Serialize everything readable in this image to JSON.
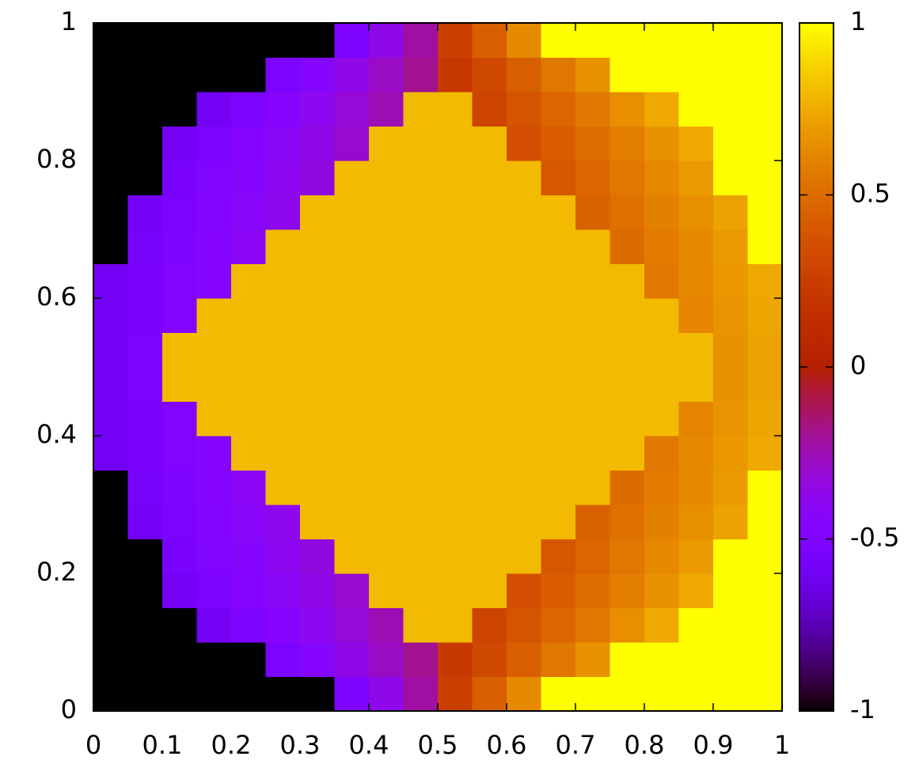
{
  "chart_data": {
    "type": "heatmap",
    "colormap": "gnuplot",
    "x": [
      0.025,
      0.075,
      0.125,
      0.175,
      0.225,
      0.275,
      0.325,
      0.375,
      0.425,
      0.475,
      0.525,
      0.575,
      0.625,
      0.675,
      0.725,
      0.775,
      0.825,
      0.875,
      0.925,
      0.975
    ],
    "y": [
      0.025,
      0.075,
      0.125,
      0.175,
      0.225,
      0.275,
      0.325,
      0.375,
      0.425,
      0.475,
      0.525,
      0.575,
      0.625,
      0.675,
      0.725,
      0.775,
      0.825,
      0.875,
      0.925,
      0.975
    ],
    "z": [
      [
        -1,
        -1,
        -1,
        -1,
        -1,
        -1,
        -1,
        -0.51,
        -0.37,
        -0.22,
        0.25,
        0.44,
        0.63,
        1,
        1,
        1,
        1,
        1,
        1,
        1
      ],
      [
        -1,
        -1,
        -1,
        -1,
        -1,
        -0.53,
        -0.45,
        -0.36,
        -0.28,
        -0.19,
        0.21,
        0.32,
        0.44,
        0.55,
        0.66,
        1,
        1,
        1,
        1,
        1
      ],
      [
        -1,
        -1,
        -1,
        -0.59,
        -0.52,
        -0.46,
        -0.39,
        -0.32,
        -0.25,
        0.8,
        0.8,
        0.29,
        0.38,
        0.47,
        0.56,
        0.65,
        0.74,
        1,
        1,
        1
      ],
      [
        -1,
        -1,
        -0.59,
        -0.53,
        -0.48,
        -0.42,
        -0.36,
        -0.3,
        0.8,
        0.8,
        0.8,
        0.8,
        0.35,
        0.43,
        0.51,
        0.58,
        0.66,
        0.74,
        1,
        1
      ],
      [
        -1,
        -1,
        -0.55,
        -0.5,
        -0.45,
        -0.39,
        -0.34,
        0.8,
        0.8,
        0.8,
        0.8,
        0.8,
        0.8,
        0.4,
        0.47,
        0.55,
        0.62,
        0.69,
        1,
        1
      ],
      [
        -1,
        -0.58,
        -0.53,
        -0.48,
        -0.43,
        -0.38,
        0.8,
        0.8,
        0.8,
        0.8,
        0.8,
        0.8,
        0.8,
        0.8,
        0.45,
        0.52,
        0.59,
        0.65,
        0.72,
        1
      ],
      [
        -1,
        -0.56,
        -0.51,
        -0.46,
        -0.41,
        0.8,
        0.8,
        0.8,
        0.8,
        0.8,
        0.8,
        0.8,
        0.8,
        0.8,
        0.8,
        0.5,
        0.57,
        0.63,
        0.69,
        1
      ],
      [
        -0.59,
        -0.55,
        -0.5,
        -0.45,
        0.8,
        0.8,
        0.8,
        0.8,
        0.8,
        0.8,
        0.8,
        0.8,
        0.8,
        0.8,
        0.8,
        0.8,
        0.55,
        0.62,
        0.68,
        0.74
      ],
      [
        -0.58,
        -0.54,
        -0.49,
        0.8,
        0.8,
        0.8,
        0.8,
        0.8,
        0.8,
        0.8,
        0.8,
        0.8,
        0.8,
        0.8,
        0.8,
        0.8,
        0.8,
        0.61,
        0.67,
        0.73
      ],
      [
        -0.58,
        -0.53,
        0.8,
        0.8,
        0.8,
        0.8,
        0.8,
        0.8,
        0.8,
        0.8,
        0.8,
        0.8,
        0.8,
        0.8,
        0.8,
        0.8,
        0.8,
        0.8,
        0.66,
        0.72
      ],
      [
        -0.58,
        -0.53,
        0.8,
        0.8,
        0.8,
        0.8,
        0.8,
        0.8,
        0.8,
        0.8,
        0.8,
        0.8,
        0.8,
        0.8,
        0.8,
        0.8,
        0.8,
        0.8,
        0.66,
        0.72
      ],
      [
        -0.58,
        -0.54,
        -0.49,
        0.8,
        0.8,
        0.8,
        0.8,
        0.8,
        0.8,
        0.8,
        0.8,
        0.8,
        0.8,
        0.8,
        0.8,
        0.8,
        0.8,
        0.61,
        0.67,
        0.73
      ],
      [
        -0.59,
        -0.55,
        -0.5,
        -0.45,
        0.8,
        0.8,
        0.8,
        0.8,
        0.8,
        0.8,
        0.8,
        0.8,
        0.8,
        0.8,
        0.8,
        0.8,
        0.55,
        0.62,
        0.68,
        0.74
      ],
      [
        -1,
        -0.56,
        -0.51,
        -0.46,
        -0.41,
        0.8,
        0.8,
        0.8,
        0.8,
        0.8,
        0.8,
        0.8,
        0.8,
        0.8,
        0.8,
        0.5,
        0.57,
        0.63,
        0.69,
        1
      ],
      [
        -1,
        -0.58,
        -0.53,
        -0.48,
        -0.43,
        -0.38,
        0.8,
        0.8,
        0.8,
        0.8,
        0.8,
        0.8,
        0.8,
        0.8,
        0.45,
        0.52,
        0.59,
        0.65,
        0.72,
        1
      ],
      [
        -1,
        -1,
        -0.55,
        -0.5,
        -0.45,
        -0.39,
        -0.34,
        0.8,
        0.8,
        0.8,
        0.8,
        0.8,
        0.8,
        0.4,
        0.47,
        0.55,
        0.62,
        0.69,
        1,
        1
      ],
      [
        -1,
        -1,
        -0.59,
        -0.53,
        -0.48,
        -0.42,
        -0.36,
        -0.3,
        0.8,
        0.8,
        0.8,
        0.8,
        0.35,
        0.43,
        0.51,
        0.58,
        0.66,
        0.74,
        1,
        1
      ],
      [
        -1,
        -1,
        -1,
        -0.59,
        -0.52,
        -0.46,
        -0.39,
        -0.32,
        -0.25,
        0.8,
        0.8,
        0.29,
        0.38,
        0.47,
        0.56,
        0.65,
        0.74,
        1,
        1,
        1
      ],
      [
        -1,
        -1,
        -1,
        -1,
        -1,
        -0.53,
        -0.45,
        -0.36,
        -0.28,
        -0.19,
        0.21,
        0.32,
        0.44,
        0.55,
        0.66,
        1,
        1,
        1,
        1,
        1
      ],
      [
        -1,
        -1,
        -1,
        -1,
        -1,
        -1,
        -1,
        -0.51,
        -0.37,
        -0.22,
        0.25,
        0.44,
        0.63,
        1,
        1,
        1,
        1,
        1,
        1,
        1
      ]
    ],
    "xlim": [
      0,
      1
    ],
    "ylim": [
      0,
      1
    ],
    "zlim": [
      -1,
      1
    ],
    "xticks": [
      0,
      0.1,
      0.2,
      0.3,
      0.4,
      0.5,
      0.6,
      0.7,
      0.8,
      0.9,
      1
    ],
    "yticks": [
      0,
      0.2,
      0.4,
      0.6,
      0.8,
      1
    ],
    "zticks": [
      -1,
      -0.5,
      0,
      0.5,
      1
    ]
  }
}
